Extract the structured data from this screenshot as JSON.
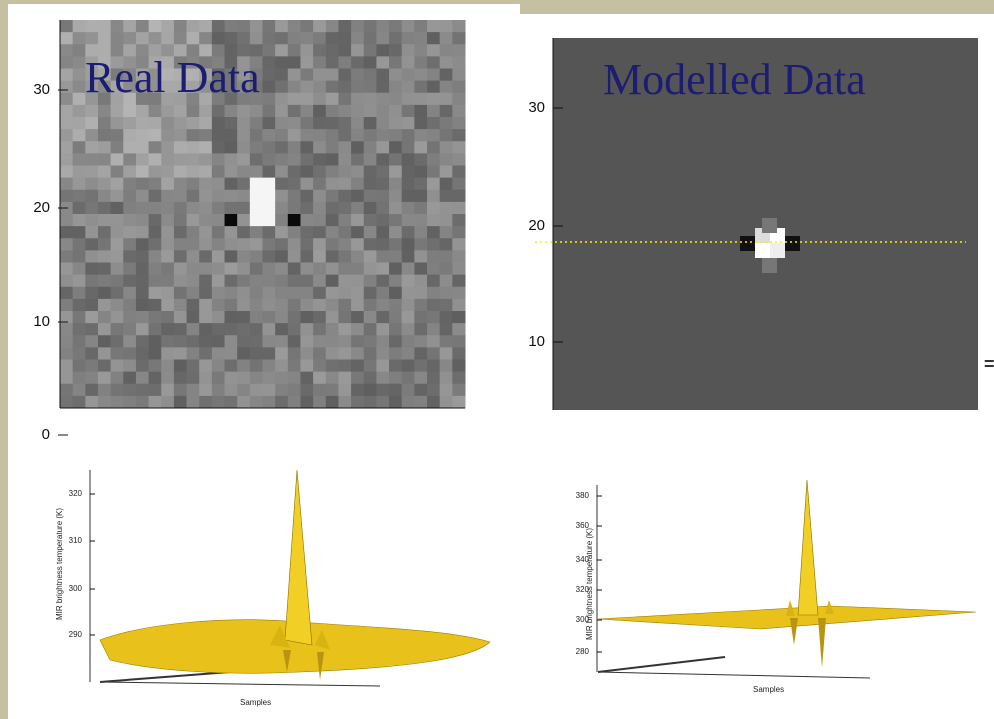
{
  "panels": [
    {
      "title": "Real Data",
      "yticks": [
        "30",
        "20",
        "10",
        "0"
      ]
    },
    {
      "title": "Modelled Data",
      "yticks": [
        "30",
        "20",
        "10"
      ]
    }
  ],
  "plots": [
    {
      "ylabel": "MIR brightness temperature (K)",
      "xlabel": "Samples",
      "yticks": [
        "320",
        "310",
        "300",
        "290"
      ]
    },
    {
      "ylabel": "MIR brightness temperature (K)",
      "xlabel": "Samples",
      "yticks": [
        "380",
        "360",
        "340",
        "320",
        "300",
        "280"
      ]
    }
  ],
  "equals": "="
}
